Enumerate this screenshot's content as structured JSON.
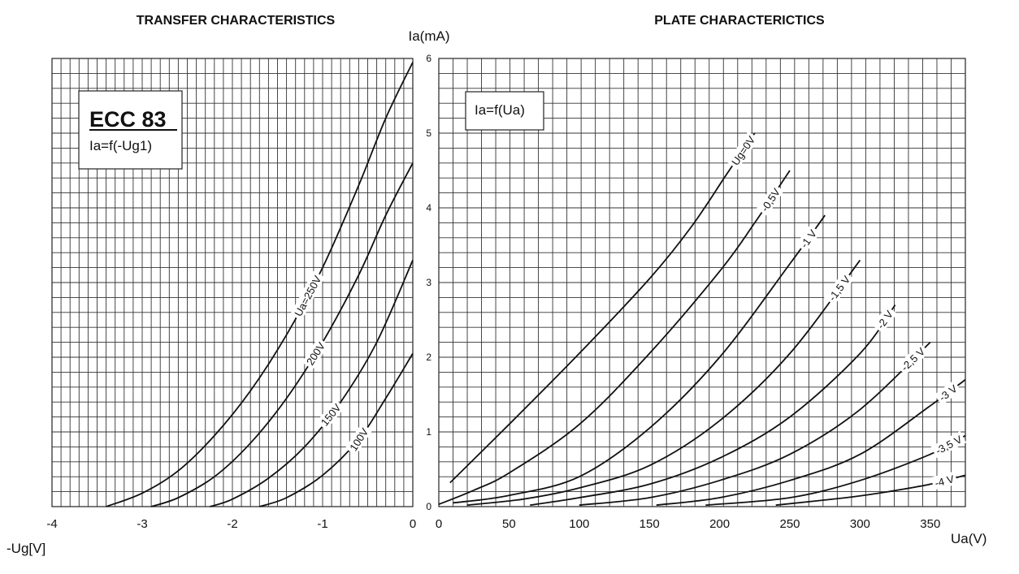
{
  "chart_data": [
    {
      "type": "line",
      "title": "TRANSFER CHARACTERISTICS",
      "xlabel": "-Ug[V]",
      "ylabel": "Ia(mA)",
      "xlim": [
        -4,
        0
      ],
      "ylim": [
        0,
        6
      ],
      "xticks": [
        "-4",
        "-3",
        "-2",
        "-1",
        "0"
      ],
      "yticks": [
        "0",
        "1",
        "2",
        "3",
        "4",
        "5",
        "6"
      ],
      "grid": true,
      "annotation": {
        "title": "ECC 83",
        "subtitle": "Ia=f(-Ug1)"
      },
      "series": [
        {
          "name": "Ua=250V",
          "x": [
            -3.4,
            -3.0,
            -2.6,
            -2.2,
            -1.8,
            -1.4,
            -1.0,
            -0.6,
            -0.3,
            0
          ],
          "y": [
            0.0,
            0.18,
            0.48,
            0.95,
            1.55,
            2.3,
            3.2,
            4.3,
            5.2,
            5.95
          ]
        },
        {
          "name": "200V",
          "x": [
            -2.9,
            -2.6,
            -2.2,
            -1.8,
            -1.4,
            -1.0,
            -0.6,
            -0.3,
            0
          ],
          "y": [
            0.0,
            0.12,
            0.4,
            0.85,
            1.45,
            2.2,
            3.1,
            3.9,
            4.6
          ]
        },
        {
          "name": "150V",
          "x": [
            -2.25,
            -2.0,
            -1.6,
            -1.2,
            -0.8,
            -0.4,
            0
          ],
          "y": [
            0.0,
            0.1,
            0.38,
            0.8,
            1.4,
            2.2,
            3.3
          ]
        },
        {
          "name": "100V",
          "x": [
            -1.7,
            -1.4,
            -1.0,
            -0.6,
            -0.3,
            0
          ],
          "y": [
            0.0,
            0.12,
            0.42,
            0.9,
            1.45,
            2.05
          ]
        }
      ]
    },
    {
      "type": "line",
      "title": "PLATE CHARACTERICTICS",
      "xlabel": "Ua(V)",
      "xlim": [
        0,
        375
      ],
      "ylim": [
        0,
        6
      ],
      "xticks": [
        "0",
        "50",
        "100",
        "150",
        "200",
        "250",
        "300",
        "350"
      ],
      "grid": true,
      "annotation": {
        "title": "Ia=f(Ua)"
      },
      "series": [
        {
          "name": "Ug=0V",
          "x": [
            8,
            50,
            100,
            150,
            180,
            205,
            225
          ],
          "y": [
            0.32,
            1.1,
            2.05,
            3.05,
            3.75,
            4.45,
            5.0
          ]
        },
        {
          "name": "-0,5V",
          "x": [
            0,
            25,
            50,
            100,
            150,
            200,
            225,
            250
          ],
          "y": [
            0.03,
            0.22,
            0.45,
            1.1,
            2.05,
            3.15,
            3.8,
            4.5
          ]
        },
        {
          "name": "-1 V",
          "x": [
            10,
            50,
            100,
            150,
            200,
            250,
            275
          ],
          "y": [
            0.05,
            0.15,
            0.4,
            1.05,
            2.0,
            3.25,
            3.9
          ]
        },
        {
          "name": "-1,5 V",
          "x": [
            20,
            60,
            100,
            150,
            200,
            250,
            300
          ],
          "y": [
            0.02,
            0.1,
            0.25,
            0.55,
            1.15,
            2.05,
            3.3
          ]
        },
        {
          "name": "-2 V",
          "x": [
            65,
            100,
            150,
            200,
            250,
            300,
            325
          ],
          "y": [
            0.02,
            0.12,
            0.3,
            0.65,
            1.2,
            2.05,
            2.7
          ]
        },
        {
          "name": "-2,5 V",
          "x": [
            100,
            150,
            200,
            250,
            300,
            350
          ],
          "y": [
            0.02,
            0.12,
            0.35,
            0.7,
            1.3,
            2.2
          ]
        },
        {
          "name": "-3 V",
          "x": [
            155,
            200,
            250,
            300,
            350,
            375
          ],
          "y": [
            0.02,
            0.12,
            0.35,
            0.7,
            1.35,
            1.7
          ]
        },
        {
          "name": "-3,5 V",
          "x": [
            190,
            250,
            300,
            350,
            375
          ],
          "y": [
            0.02,
            0.12,
            0.35,
            0.7,
            0.95
          ]
        },
        {
          "name": "-4 V",
          "x": [
            240,
            290,
            320,
            350,
            375
          ],
          "y": [
            0.02,
            0.12,
            0.2,
            0.3,
            0.42
          ]
        }
      ]
    }
  ]
}
